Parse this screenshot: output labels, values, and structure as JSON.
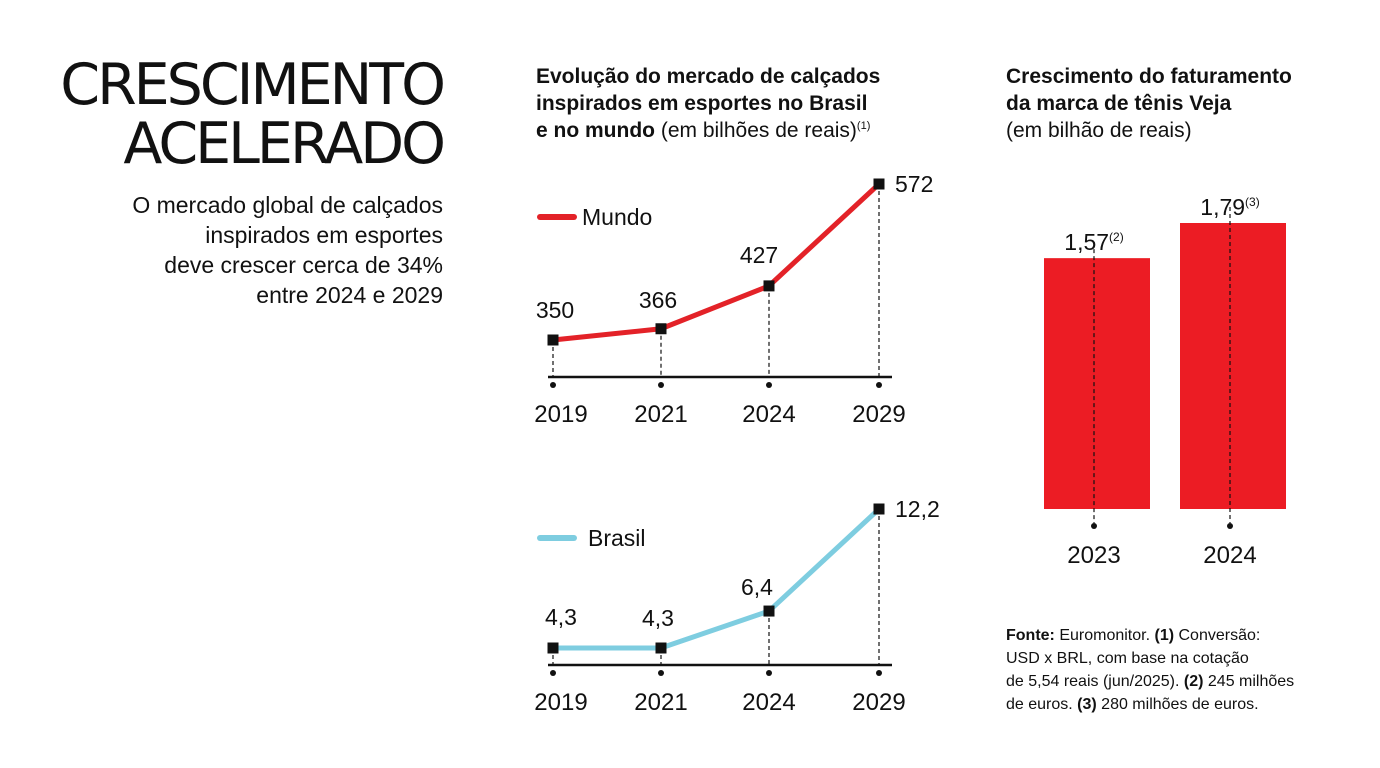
{
  "headline": {
    "line1": "CRESCIMENTO",
    "line2": "ACELERADO"
  },
  "lede": [
    "O mercado global de calçados",
    "inspirados em esportes",
    "deve crescer cerca de 34%",
    "entre 2024 e 2029"
  ],
  "left_title": {
    "bold_line1": "Evolução do mercado de calçados",
    "bold_line2": "inspirados em esportes no Brasil",
    "bold_line3": "e no mundo",
    "normal": " (em bilhões de reais)",
    "note": "(1)"
  },
  "right_title": {
    "bold_line1": "Crescimento do faturamento",
    "bold_line2": "da marca de tênis Veja",
    "normal": "(em bilhão de reais)"
  },
  "source": {
    "label": "Fonte:",
    "text1": " Euromonitor. ",
    "n1": "(1)",
    "text2": " Conversão:",
    "line2": "USD x BRL, com base na cotação",
    "line3a": "de 5,54 reais (jun/2025). ",
    "n2": "(2)",
    "line3b": " 245 milhões",
    "line4a": "de euros. ",
    "n3": "(3)",
    "line4b": " 280 milhões de euros."
  },
  "colors": {
    "mundo": "#e32228",
    "brasil": "#7ecde0",
    "bar": "#ec1c24",
    "ink": "#111111"
  },
  "chart_data": [
    {
      "type": "line",
      "legend": "Mundo",
      "x": [
        "2019",
        "2021",
        "2024",
        "2029"
      ],
      "values": [
        350,
        366,
        427,
        572
      ],
      "labels": [
        "350",
        "366",
        "427",
        "572"
      ]
    },
    {
      "type": "line",
      "legend": "Brasil",
      "x": [
        "2019",
        "2021",
        "2024",
        "2029"
      ],
      "values": [
        4.3,
        4.3,
        6.4,
        12.2
      ],
      "labels": [
        "4,3",
        "4,3",
        "6,4",
        "12,2"
      ]
    },
    {
      "type": "bar",
      "categories": [
        "2023",
        "2024"
      ],
      "values": [
        1.57,
        1.79
      ],
      "labels": [
        "1,57",
        "1,79"
      ],
      "notes": [
        "(2)",
        "(3)"
      ]
    }
  ]
}
